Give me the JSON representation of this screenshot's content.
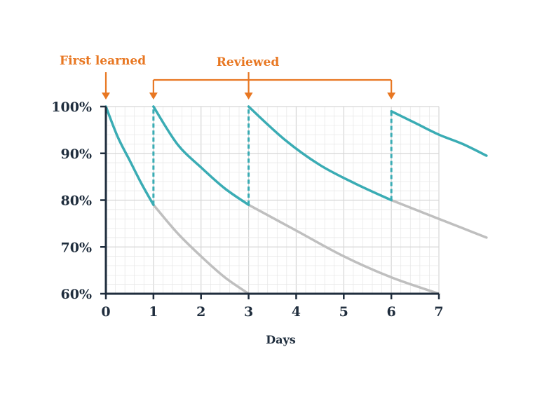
{
  "chart_data": {
    "type": "line",
    "title": "",
    "xlabel": "Days",
    "ylabel": "",
    "xlim": [
      0,
      7
    ],
    "ylim": [
      60,
      100
    ],
    "x_ticks": [
      "0",
      "1",
      "2",
      "3",
      "4",
      "5",
      "6",
      "7"
    ],
    "y_ticks": [
      "60%",
      "70%",
      "80%",
      "90%",
      "100%"
    ],
    "grid": true,
    "colors": {
      "retained": "#3aacb4",
      "forgotten": "#bfbfbf",
      "annotation": "#e87722",
      "axis": "#1f2d3d",
      "grid": "#e6e6e6"
    },
    "series": [
      {
        "role": "retained",
        "segments": [
          {
            "x": [
              0,
              0.25,
              0.5,
              0.75,
              1
            ],
            "y": [
              100,
              93.5,
              88.5,
              83.5,
              79
            ]
          },
          {
            "x": [
              1,
              1.5,
              2,
              2.5,
              3
            ],
            "y": [
              100,
              92,
              87,
              82.5,
              79
            ]
          },
          {
            "x": [
              3,
              3.75,
              4.5,
              5.25,
              6
            ],
            "y": [
              100,
              93,
              87.5,
              83.5,
              80
            ]
          },
          {
            "x": [
              6,
              6.5,
              7,
              7.5,
              8
            ],
            "y": [
              99,
              96.5,
              94,
              92,
              89.5
            ]
          }
        ]
      },
      {
        "role": "forgotten",
        "segments": [
          {
            "x": [
              1,
              1.5,
              2,
              2.5,
              3
            ],
            "y": [
              79,
              73,
              68,
              63.5,
              60
            ]
          },
          {
            "x": [
              3,
              4,
              5,
              6,
              7
            ],
            "y": [
              79,
              73.5,
              68,
              63.5,
              60
            ]
          },
          {
            "x": [
              6,
              6.5,
              7,
              7.5,
              8
            ],
            "y": [
              80,
              78,
              76,
              74,
              72
            ]
          }
        ]
      }
    ],
    "review_lines": [
      {
        "x": 1,
        "y_from": 79,
        "y_to": 100
      },
      {
        "x": 3,
        "y_from": 79,
        "y_to": 100
      },
      {
        "x": 6,
        "y_from": 80,
        "y_to": 99
      }
    ],
    "annotations": [
      {
        "label": "First learned",
        "x": [
          0
        ]
      },
      {
        "label": "Reviewed",
        "x": [
          1,
          3,
          6
        ]
      }
    ]
  }
}
